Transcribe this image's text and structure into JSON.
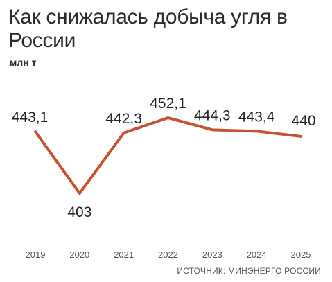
{
  "chart_data": {
    "type": "line",
    "title": "Как снижалась добыча угля в России",
    "ylabel": "млн т",
    "xlabel": "",
    "categories": [
      "2019",
      "2020",
      "2021",
      "2022",
      "2023",
      "2024",
      "2025"
    ],
    "series": [
      {
        "values": [
          443.1,
          403,
          442.3,
          452.1,
          444.3,
          443.4,
          440
        ],
        "labels": [
          "443,1",
          "403",
          "442,3",
          "452,1",
          "444,3",
          "443,4",
          "440"
        ],
        "color": "#c8512f"
      }
    ],
    "ylim": [
      403,
      452.1
    ],
    "grid": false,
    "legend": "none",
    "source": "ИСТОЧНИК: МИНЭНЕРГО РОССИИ"
  }
}
